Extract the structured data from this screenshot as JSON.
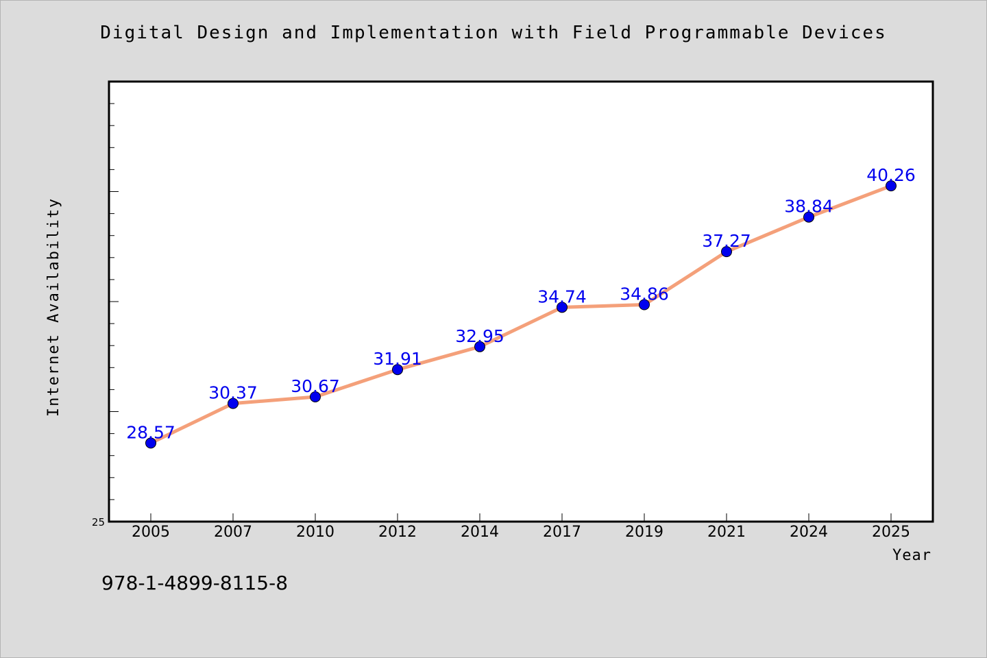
{
  "title": "Digital Design and Implementation with Field Programmable Devices",
  "footer_text": "978-1-4899-8115-8",
  "colors": {
    "line": "#f4a07a",
    "marker": "#0000ee",
    "label": "#0000ee",
    "background": "#dcdcdc",
    "plot_bg": "#ffffff"
  },
  "chart_data": {
    "type": "line",
    "categories": [
      "2005",
      "2007",
      "2010",
      "2012",
      "2014",
      "2017",
      "2019",
      "2021",
      "2024",
      "2025"
    ],
    "values": [
      28.57,
      30.37,
      30.67,
      31.91,
      32.95,
      34.74,
      34.86,
      37.27,
      38.84,
      40.26
    ],
    "value_labels": [
      "28.57",
      "30.37",
      "30.67",
      "31.91",
      "32.95",
      "34.74",
      "34.86",
      "37.27",
      "38.84",
      "40.26"
    ],
    "xlabel": "Year",
    "ylabel": "Internet Availability",
    "ylim": [
      25,
      45
    ],
    "ytick_labels": [
      "25"
    ],
    "grid": false,
    "legend": "none"
  }
}
